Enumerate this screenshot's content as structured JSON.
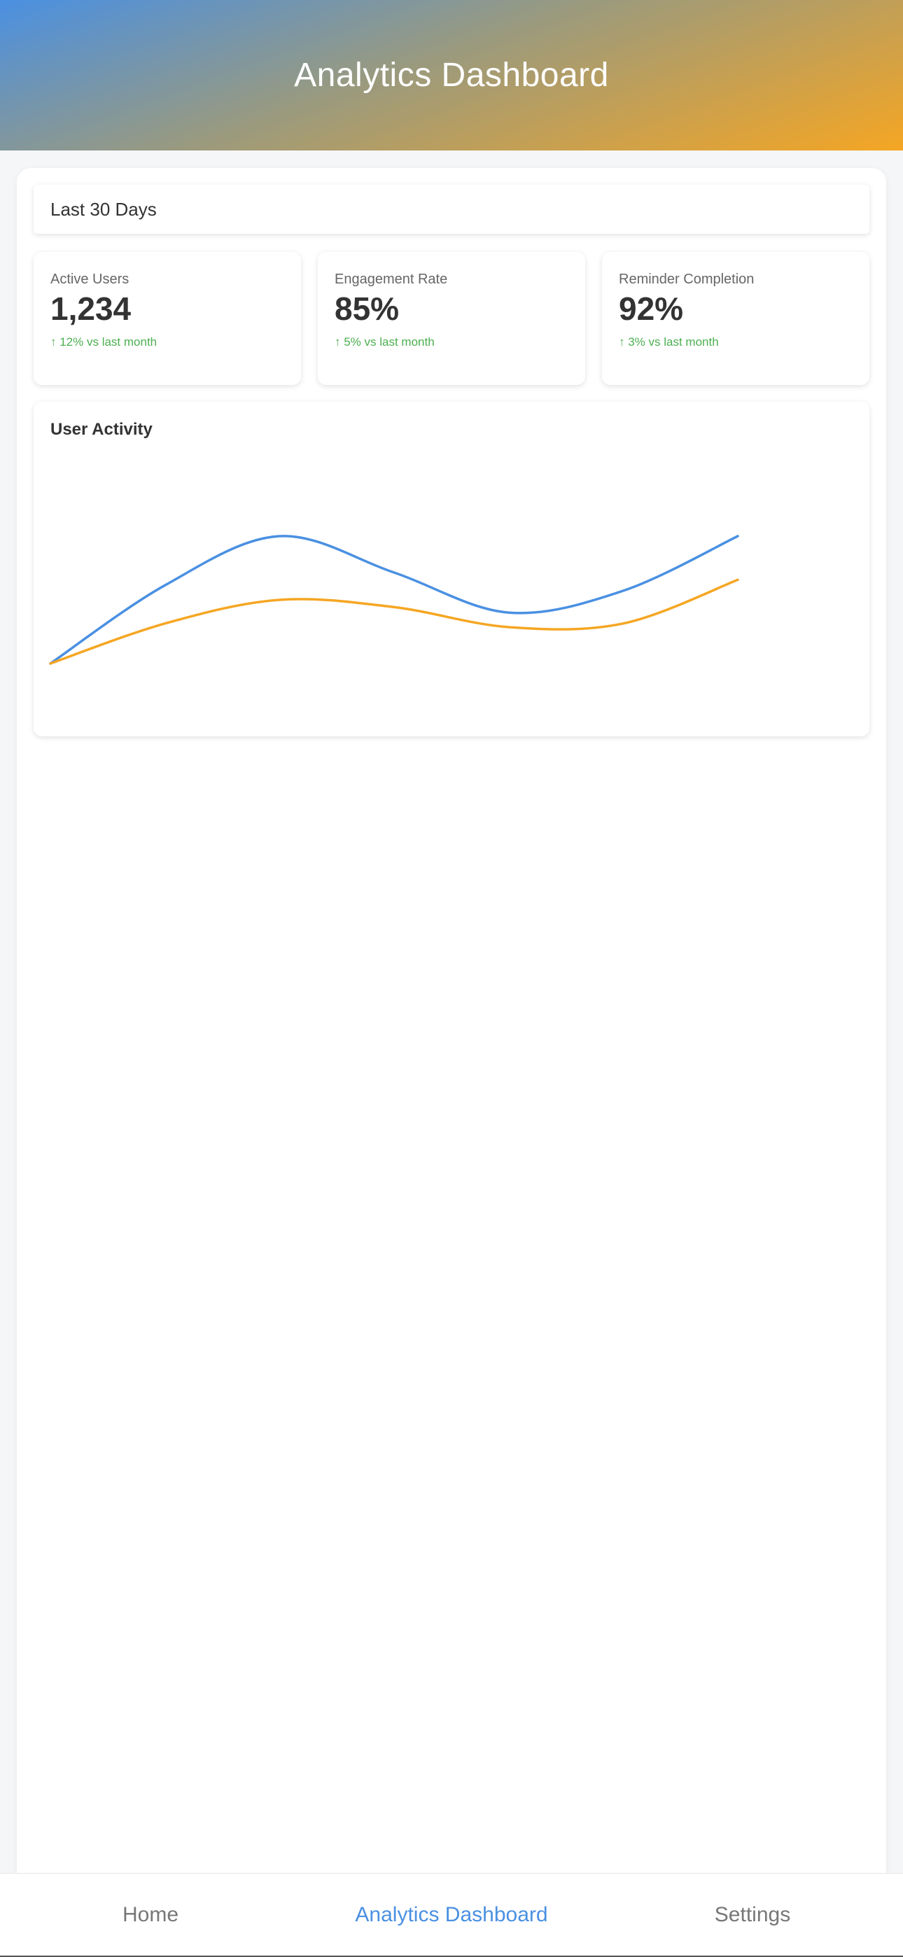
{
  "header": {
    "title": "Analytics Dashboard"
  },
  "period": {
    "label": "Last 30 Days"
  },
  "stats": [
    {
      "label": "Active Users",
      "value": "1,234",
      "change": "↑ 12% vs last month"
    },
    {
      "label": "Engagement Rate",
      "value": "85%",
      "change": "↑ 5% vs last month"
    },
    {
      "label": "Reminder Completion",
      "value": "92%",
      "change": "↑ 3% vs last month"
    }
  ],
  "activity": {
    "title": "User Activity"
  },
  "chart_data": {
    "type": "line",
    "title": "User Activity",
    "x": [
      0,
      1,
      2,
      3,
      4,
      5,
      6
    ],
    "series": [
      {
        "color": "#4a90e2",
        "values": [
          10,
          53,
          80,
          60,
          38,
          50,
          80
        ]
      },
      {
        "color": "#f5a623",
        "values": [
          10,
          32,
          45,
          41,
          30,
          32,
          56
        ]
      }
    ],
    "ylim": [
      0,
      100
    ],
    "grid": false
  },
  "nav": {
    "items": [
      {
        "label": "Home",
        "active": false
      },
      {
        "label": "Analytics Dashboard",
        "active": true
      },
      {
        "label": "Settings",
        "active": false
      }
    ]
  },
  "colors": {
    "accent": "#4a90e2",
    "secondary": "#f5a623",
    "positive": "#4caf50"
  }
}
